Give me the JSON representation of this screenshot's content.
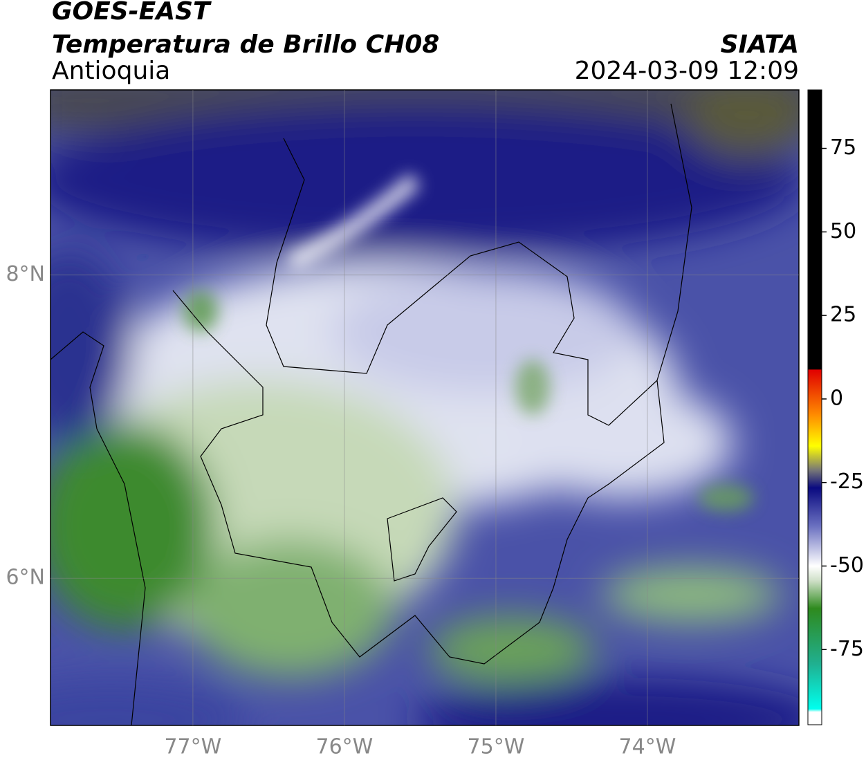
{
  "header": {
    "title": "GOES-EAST",
    "subtitle": "Temperatura de Brillo CH08",
    "region": "Antioquia",
    "source": "SIATA",
    "datetime": "2024-03-09 12:09"
  },
  "map": {
    "xlim": [
      -77.94,
      -73.0
    ],
    "ylim": [
      5.03,
      9.22
    ],
    "xticks": [
      {
        "value": -77,
        "label": "77°W"
      },
      {
        "value": -76,
        "label": "76°W"
      },
      {
        "value": -75,
        "label": "75°W"
      },
      {
        "value": -74,
        "label": "74°W"
      }
    ],
    "yticks": [
      {
        "value": 8,
        "label": "8°N"
      },
      {
        "value": 6,
        "label": "6°N"
      }
    ],
    "grid": true
  },
  "colorbar": {
    "lim": [
      -97.5,
      92.5
    ],
    "ticks": [
      75,
      50,
      25,
      0,
      -25,
      -50,
      -75
    ]
  }
}
